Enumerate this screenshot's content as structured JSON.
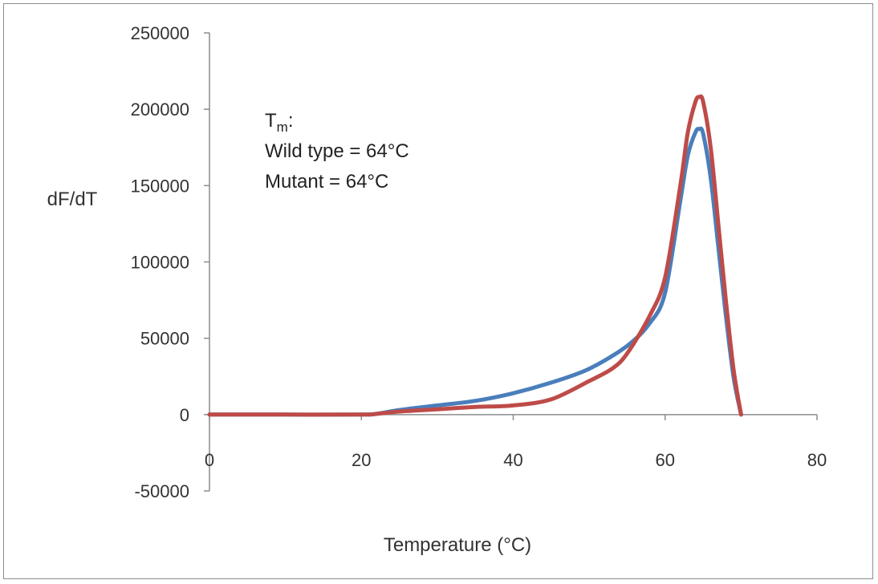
{
  "chart_data": {
    "type": "line",
    "title": "",
    "xlabel": "Temperature (°C)",
    "ylabel": "dF/dT",
    "xlim": [
      0,
      80
    ],
    "ylim": [
      -50000,
      250000
    ],
    "x_ticks": [
      0,
      20,
      40,
      60,
      80
    ],
    "y_ticks": [
      -50000,
      0,
      50000,
      100000,
      150000,
      200000,
      250000
    ],
    "grid": false,
    "legend": "none",
    "annotation": {
      "line1_main": "T",
      "line1_sub": "m",
      "line1_suffix": ":",
      "line2": "Wild type = 64°C",
      "line3": "Mutant = 64°C"
    },
    "series": [
      {
        "color": "#4a7ebb",
        "x": [
          0,
          10,
          20,
          22,
          25,
          30,
          35,
          40,
          45,
          50,
          55,
          58,
          60,
          62,
          63,
          64,
          64.5,
          65,
          66,
          67,
          68,
          69,
          70
        ],
        "y": [
          0,
          0,
          0,
          500,
          3000,
          6000,
          9000,
          14000,
          21000,
          30000,
          45000,
          60000,
          80000,
          140000,
          170000,
          185000,
          187000,
          184000,
          155000,
          110000,
          65000,
          25000,
          0
        ]
      },
      {
        "color": "#be4b48",
        "x": [
          0,
          10,
          20,
          22,
          25,
          30,
          35,
          40,
          45,
          50,
          53,
          55,
          58,
          60,
          62,
          63,
          64,
          64.5,
          65,
          66,
          67,
          68,
          69,
          70
        ],
        "y": [
          0,
          0,
          0,
          500,
          2000,
          3500,
          5000,
          6000,
          10000,
          22000,
          30000,
          40000,
          65000,
          90000,
          150000,
          185000,
          205000,
          208000,
          205000,
          175000,
          125000,
          75000,
          30000,
          0
        ]
      }
    ]
  }
}
